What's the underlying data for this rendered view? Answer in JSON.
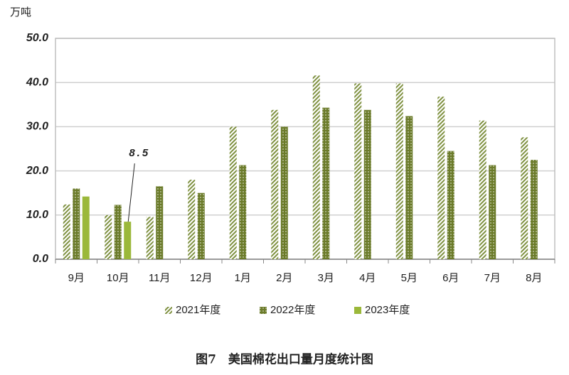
{
  "chart_data": {
    "type": "bar",
    "title": "图7　美国棉花出口量月度统计图",
    "y_label": "万吨",
    "categories": [
      "9月",
      "10月",
      "11月",
      "12月",
      "1月",
      "2月",
      "3月",
      "4月",
      "5月",
      "6月",
      "7月",
      "8月"
    ],
    "series": [
      {
        "name": "2021年度",
        "color": "#7f9141",
        "pattern": "hatch",
        "values": [
          12.4,
          10.0,
          9.6,
          18.0,
          30.0,
          33.8,
          41.6,
          39.8,
          39.8,
          36.8,
          31.4,
          27.6
        ]
      },
      {
        "name": "2022年度",
        "color": "#6b7b2a",
        "pattern": "dots",
        "values": [
          16.0,
          12.3,
          16.5,
          15.0,
          21.3,
          30.0,
          34.3,
          33.8,
          32.4,
          24.5,
          21.3,
          22.5
        ]
      },
      {
        "name": "2023年度",
        "color": "#9bb83a",
        "pattern": "solid",
        "values": [
          14.2,
          8.5,
          null,
          null,
          null,
          null,
          null,
          null,
          null,
          null,
          null,
          null
        ]
      }
    ],
    "annotation": {
      "text": "8.5",
      "series": 2,
      "index": 1
    },
    "ylim": [
      0,
      50
    ],
    "yticks": [
      {
        "value": 0,
        "label": "0.0"
      },
      {
        "value": 10,
        "label": "10.0"
      },
      {
        "value": 20,
        "label": "20.0"
      },
      {
        "value": 30,
        "label": "30.0"
      },
      {
        "value": 40,
        "label": "40.0"
      },
      {
        "value": 50,
        "label": "50.0"
      }
    ],
    "grid": true
  }
}
